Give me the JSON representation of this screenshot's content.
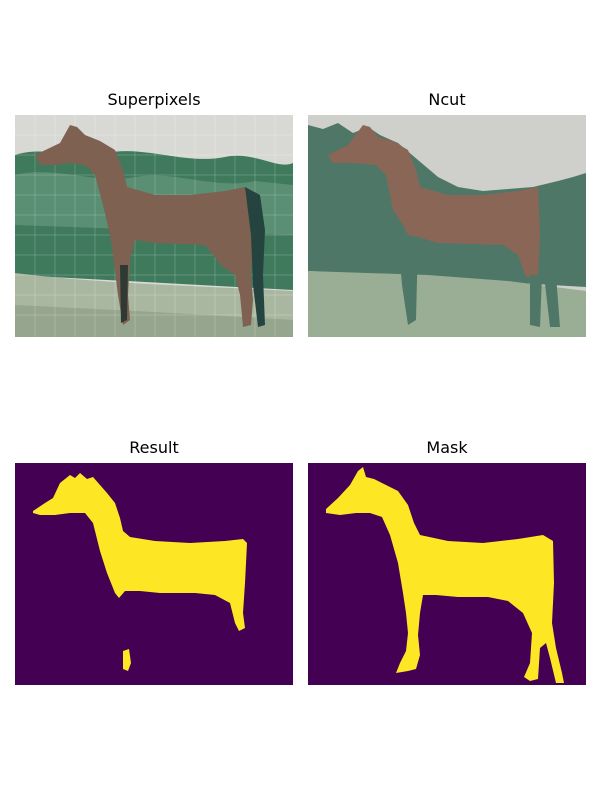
{
  "figure": {
    "panels": [
      {
        "title": "Superpixels"
      },
      {
        "title": "Ncut"
      },
      {
        "title": "Result"
      },
      {
        "title": "Mask"
      }
    ]
  },
  "colors": {
    "mask_background": "#440154",
    "mask_foreground": "#fde725",
    "horse_brown": "#8a6656",
    "ncut_foliage": "#4f7767",
    "ncut_sky": "#cfd0cc",
    "ncut_ground": "#9aae95"
  }
}
